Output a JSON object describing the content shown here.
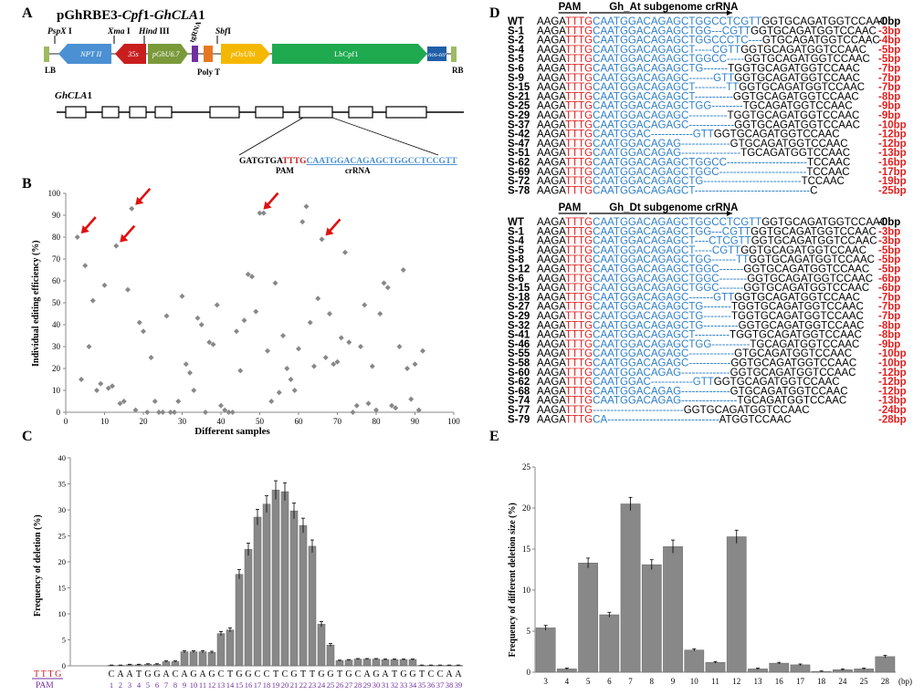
{
  "panel_labels": [
    "A",
    "B",
    "C",
    "D",
    "E"
  ],
  "panelA": {
    "title_prefix": "pGhRBE3-",
    "title_mid1": "Cpf",
    "title_mid2": "1-",
    "title_gene": "GhCLA",
    "title_suffix": "1",
    "sites": [
      {
        "italic": "PspX",
        "roman": " I"
      },
      {
        "italic": "Xma",
        "roman": " I"
      },
      {
        "italic": "Hind",
        "roman": " III"
      },
      {
        "italic": "",
        "roman": "tgRNA"
      },
      {
        "italic": "Sbf",
        "roman": "I"
      }
    ],
    "segments": [
      "LB",
      "NPT II",
      "35s",
      "pGhU6.7",
      "Poly T",
      "pOsUbi",
      "LbCpf1",
      "nos-ter",
      "RB"
    ],
    "gene_label_italic": "GhCLA",
    "gene_label_roman": "1",
    "seq_prefix": "GATGTGA",
    "seq_pam": "TTTG",
    "seq_cr": "CAATGGACAGAGCTGGCCTCCGTT",
    "seq_pam_label": "PAM",
    "seq_cr_label": "crRNA",
    "colors": {
      "blue": "#4a90d2",
      "red": "#c81e1e",
      "olive": "#7a9a3a",
      "purple": "#7030a0",
      "orange": "#e87722",
      "yellow": "#f5b800",
      "green": "#1faa50",
      "navy": "#1f5fa8",
      "lightgreen": "#9dbb61"
    }
  },
  "panelB": {
    "ylabel": "Individual  editing efficiency (%)",
    "xlabel": "Different samples",
    "chart_data": {
      "type": "scatter",
      "xlim": [
        0,
        100
      ],
      "ylim": [
        0,
        100
      ],
      "xticks": [
        0,
        10,
        20,
        30,
        40,
        50,
        60,
        70,
        80,
        90,
        100
      ],
      "yticks": [
        0,
        10,
        20,
        30,
        40,
        50,
        60,
        70,
        80,
        90,
        100
      ],
      "points": [
        [
          3,
          80
        ],
        [
          4,
          15
        ],
        [
          5,
          67
        ],
        [
          6,
          30
        ],
        [
          7,
          51
        ],
        [
          8,
          10
        ],
        [
          9,
          13
        ],
        [
          10,
          58
        ],
        [
          11,
          11
        ],
        [
          12,
          12
        ],
        [
          13,
          76
        ],
        [
          14,
          4
        ],
        [
          15,
          5
        ],
        [
          16,
          56
        ],
        [
          17,
          93
        ],
        [
          18,
          1
        ],
        [
          19,
          41
        ],
        [
          20,
          37
        ],
        [
          21,
          0
        ],
        [
          22,
          25
        ],
        [
          23,
          5
        ],
        [
          24,
          0
        ],
        [
          25,
          0
        ],
        [
          26,
          44
        ],
        [
          27,
          0
        ],
        [
          28,
          0
        ],
        [
          29,
          5
        ],
        [
          30,
          53
        ],
        [
          31,
          22
        ],
        [
          32,
          18
        ],
        [
          33,
          10
        ],
        [
          34,
          43
        ],
        [
          35,
          40
        ],
        [
          36,
          0
        ],
        [
          37,
          32
        ],
        [
          38,
          31
        ],
        [
          39,
          49
        ],
        [
          40,
          3
        ],
        [
          41,
          1
        ],
        [
          42,
          0
        ],
        [
          43,
          0
        ],
        [
          44,
          37
        ],
        [
          45,
          19
        ],
        [
          46,
          42
        ],
        [
          47,
          63
        ],
        [
          48,
          62
        ],
        [
          49,
          46
        ],
        [
          50,
          91
        ],
        [
          51,
          91
        ],
        [
          52,
          28
        ],
        [
          53,
          5
        ],
        [
          54,
          59
        ],
        [
          55,
          9
        ],
        [
          56,
          35
        ],
        [
          57,
          20
        ],
        [
          58,
          15
        ],
        [
          59,
          10
        ],
        [
          60,
          29
        ],
        [
          61,
          87
        ],
        [
          62,
          94
        ],
        [
          63,
          41
        ],
        [
          64,
          21
        ],
        [
          65,
          52
        ],
        [
          66,
          79
        ],
        [
          67,
          25
        ],
        [
          68,
          45
        ],
        [
          69,
          22
        ],
        [
          70,
          23
        ],
        [
          71,
          34
        ],
        [
          72,
          73
        ],
        [
          73,
          32
        ],
        [
          74,
          0
        ],
        [
          75,
          3
        ],
        [
          76,
          30
        ],
        [
          77,
          49
        ],
        [
          78,
          4
        ],
        [
          79,
          21
        ],
        [
          80,
          1
        ],
        [
          81,
          45
        ],
        [
          82,
          59
        ],
        [
          83,
          57
        ],
        [
          84,
          3
        ],
        [
          85,
          2
        ],
        [
          86,
          30
        ],
        [
          87,
          65
        ],
        [
          88,
          20
        ],
        [
          89,
          6
        ],
        [
          90,
          22
        ],
        [
          91,
          1
        ],
        [
          92,
          28
        ]
      ],
      "arrows_at": [
        [
          3,
          80
        ],
        [
          17,
          93
        ],
        [
          13,
          76
        ],
        [
          50,
          91
        ],
        [
          66,
          79
        ]
      ]
    }
  },
  "panelC": {
    "ylabel": "Frequency of deletion (%)",
    "chart_data": {
      "type": "bar",
      "ylim": [
        0,
        40
      ],
      "yticks": [
        0,
        5,
        10,
        15,
        20,
        25,
        30,
        35,
        40
      ],
      "letters": [
        "C",
        "A",
        "A",
        "T",
        "G",
        "G",
        "A",
        "C",
        "A",
        "G",
        "A",
        "G",
        "C",
        "T",
        "G",
        "G",
        "C",
        "C",
        "T",
        "C",
        "G",
        "T",
        "T",
        "G",
        "G",
        "T",
        "G",
        "C",
        "A",
        "G",
        "A",
        "T",
        "G",
        "G",
        "T",
        "C",
        "C",
        "A",
        "A"
      ],
      "numbers": [
        "1",
        "2",
        "3",
        "4",
        "5",
        "6",
        "7",
        "8",
        "9",
        "10",
        "11",
        "12",
        "13",
        "14",
        "15",
        "16",
        "17",
        "18",
        "19",
        "20",
        "21",
        "22",
        "23",
        "24",
        "25",
        "26",
        "27",
        "28",
        "29",
        "30",
        "31",
        "32",
        "33",
        "34",
        "35",
        "36",
        "37",
        "38",
        "39"
      ],
      "values": [
        0.1,
        0.1,
        0.2,
        0.2,
        0.3,
        0.3,
        0.8,
        0.8,
        2.7,
        2.7,
        2.7,
        2.6,
        6.2,
        6.9,
        17.6,
        22.4,
        28.6,
        31.1,
        33.8,
        33.5,
        29.8,
        27.0,
        23.0,
        8.0,
        4.0,
        1.0,
        1.1,
        1.3,
        1.3,
        1.3,
        1.2,
        1.2,
        1.2,
        1.2,
        0.1,
        0.1,
        0.1,
        0.1,
        0.1
      ],
      "errors": [
        0.05,
        0.05,
        0.1,
        0.1,
        0.1,
        0.1,
        0.15,
        0.15,
        0.2,
        0.2,
        0.2,
        0.2,
        0.4,
        0.4,
        0.9,
        1.2,
        1.5,
        1.6,
        1.8,
        1.7,
        1.5,
        1.4,
        1.2,
        0.5,
        0.3,
        0.1,
        0.1,
        0.1,
        0.1,
        0.1,
        0.1,
        0.1,
        0.1,
        0.1,
        0.05,
        0.05,
        0.05,
        0.05,
        0.05
      ],
      "pam_letters": "TTTG",
      "pam_label": "PAM"
    }
  },
  "panelD": {
    "at_header": "Gh_At subgenome crRNA",
    "dt_header": "Gh_Dt subgenome crRNA",
    "pam_label": "PAM",
    "at_rows": [
      {
        "id": "WT",
        "pre": "AAGA",
        "pam": "TTTG",
        "cr": "CAATGGACAGAGCTGGCCTCGTT",
        "post": "GGTGCAGATGGTCCAAC",
        "del": "-0bp"
      },
      {
        "id": "S-1",
        "pre": "AAGA",
        "pam": "TTTG",
        "cr": "CAATGGACAGAGCTGG---CGTT",
        "post": "GGTGCAGATGGTCCAAC",
        "del": "-3bp"
      },
      {
        "id": "S-2",
        "pre": "AAGA",
        "pam": "TTTG",
        "cr": "CAATGGACAGAGCTGGCCCTC----",
        "post": "GTGCAGATGGTCCAAC",
        "del": "-4bp"
      },
      {
        "id": "S-4",
        "pre": "AAGA",
        "pam": "TTTG",
        "cr": "CAATGGACAGAGCT-----CGTT",
        "post": "GGTGCAGATGGTCCAAC",
        "del": "-5bp"
      },
      {
        "id": "S-5",
        "pre": "AAGA",
        "pam": "TTTG",
        "cr": "CAATGGACAGAGCTGGCC-----",
        "post": "GGTGCAGATGGTCCAAC",
        "del": "-5bp"
      },
      {
        "id": "S-6",
        "pre": "AAGA",
        "pam": "TTTG",
        "cr": "CAATGGACAGAGCTG-------",
        "post": "TGGTGCAGATGGTCCAAC",
        "del": "-7bp"
      },
      {
        "id": "S-9",
        "pre": "AAGA",
        "pam": "TTTG",
        "cr": "CAATGGACAGAGC-------GTT",
        "post": "GGTGCAGATGGTCCAAC",
        "del": "-7bp"
      },
      {
        "id": "S-15",
        "pre": "AAGA",
        "pam": "TTTG",
        "cr": "CAATGGACAGAGCT---------TT",
        "post": "GGTGCAGATGGTCCAAC",
        "del": "-7bp"
      },
      {
        "id": "S-21",
        "pre": "AAGA",
        "pam": "TTTG",
        "cr": "CAATGGACAGAGCT-----------",
        "post": "GGTGCAGATGGTCCAAC",
        "del": "-8bp"
      },
      {
        "id": "S-25",
        "pre": "AAGA",
        "pam": "TTTG",
        "cr": "CAATGGACAGAGCTGG---------",
        "post": "TGCAGATGGTCCAAC",
        "del": "-9bp"
      },
      {
        "id": "S-29",
        "pre": "AAGA",
        "pam": "TTTG",
        "cr": "CAATGGACAGAGC-----------",
        "post": "TGGTGCAGATGGTCCAAC",
        "del": "-9bp"
      },
      {
        "id": "S-37",
        "pre": "AAGA",
        "pam": "TTTG",
        "cr": "CAATGGACAGAGC-------------",
        "post": "GGTGCAGATGGTCCAAC",
        "del": "-10bp"
      },
      {
        "id": "S-42",
        "pre": "AAGA",
        "pam": "TTTG",
        "cr": "CAATGGAC------------GTT",
        "post": "GGTGCAGATGGTCCAAC",
        "del": "-12bp"
      },
      {
        "id": "S-47",
        "pre": "AAGA",
        "pam": "TTTG",
        "cr": "CAATGGACAGAG--------------",
        "post": "GTGCAGATGGTCCAAC",
        "del": "-12bp"
      },
      {
        "id": "S-51",
        "pre": "AAGA",
        "pam": "TTTG",
        "cr": "CAATGGACAGAG-----------------",
        "post": "TGCAGATGGTCCAAC",
        "del": "-13bp"
      },
      {
        "id": "S-62",
        "pre": "AAGA",
        "pam": "TTTG",
        "cr": "CAATGGACAGAGCTGGCC-----------------------",
        "post": "TCCAAC",
        "del": "-16bp"
      },
      {
        "id": "S-69",
        "pre": "AAGA",
        "pam": "TTTG",
        "cr": "CAATGGACAGAGCTGGC-------------------------",
        "post": "TCCAAC",
        "del": "-17bp"
      },
      {
        "id": "S-72",
        "pre": "AAGA",
        "pam": "TTTG",
        "cr": "CAATGGACAGAGCTG----------------------------",
        "post": "TCCAAC",
        "del": "-19bp"
      },
      {
        "id": "S-78",
        "pre": "AAGA",
        "pam": "TTTG",
        "cr": "CAATGGACAGAGCT---------------------------------",
        "post": "C",
        "del": "-25bp"
      }
    ],
    "dt_rows": [
      {
        "id": "WT",
        "pre": "AAGA",
        "pam": "TTTG",
        "cr": "CAATGGACAGAGCTGGCCTCGTT",
        "post": "GGTGCAGATGGTCCAAC",
        "del": "-0bp"
      },
      {
        "id": "S-1",
        "pre": "AAGA",
        "pam": "TTTG",
        "cr": "CAATGGACAGAGCTGG---CGTT",
        "post": "GGTGCAGATGGTCCAAC",
        "del": "-3bp"
      },
      {
        "id": "S-4",
        "pre": "AAGA",
        "pam": "TTTG",
        "cr": "CAATGGACAGAGCT----CTCGTT",
        "post": "GGTGCAGATGGTCCAAC",
        "del": "-3bp"
      },
      {
        "id": "S-5",
        "pre": "AAGA",
        "pam": "TTTG",
        "cr": "CAATGGACAGAGCT-----CGTT",
        "post": "GGTGCAGATGGTCCAAC",
        "del": "-5bp"
      },
      {
        "id": "S-8",
        "pre": "AAGA",
        "pam": "TTTG",
        "cr": "CAATGGACAGAGCTGG-------TT",
        "post": "GGTGCAGATGGTCCAAC",
        "del": "-5bp"
      },
      {
        "id": "S-12",
        "pre": "AAGA",
        "pam": "TTTG",
        "cr": "CAATGGACAGAGCTGGC-------",
        "post": "GGTGCAGATGGTCCAAC",
        "del": "-5bp"
      },
      {
        "id": "S-6",
        "pre": "AAGA",
        "pam": "TTTG",
        "cr": "CAATGGACAGAGCTGGC--------",
        "post": "GGTGCAGATGGTCCAAC",
        "del": "-6bp"
      },
      {
        "id": "S-15",
        "pre": "AAGA",
        "pam": "TTTG",
        "cr": "CAATGGACAGAGCTGGC-------",
        "post": "GGTGCAGATGGTCCAAC",
        "del": "-6bp"
      },
      {
        "id": "S-18",
        "pre": "AAGA",
        "pam": "TTTG",
        "cr": "CAATGGACAGAGC-------GTT",
        "post": "GGTGCAGATGGTCCAAC",
        "del": "-7bp"
      },
      {
        "id": "S-27",
        "pre": "AAGA",
        "pam": "TTTG",
        "cr": "CAATGGACAGAGCTG--------",
        "post": "TGGTGCAGATGGTCCAAC",
        "del": "-7bp"
      },
      {
        "id": "S-29",
        "pre": "AAGA",
        "pam": "TTTG",
        "cr": "CAATGGACAGAGCTG--------",
        "post": "TGGTGCAGATGGTCCAAC",
        "del": "-7bp"
      },
      {
        "id": "S-32",
        "pre": "AAGA",
        "pam": "TTTG",
        "cr": "CAATGGACAGAGCTG----------",
        "post": "GGTGCAGATGGTCCAAC",
        "del": "-8bp"
      },
      {
        "id": "S-41",
        "pre": "AAGA",
        "pam": "TTTG",
        "cr": "CAATGGACAGAGCT----------",
        "post": "TGGTGCAGATGGTCCAAC",
        "del": "-8bp"
      },
      {
        "id": "S-46",
        "pre": "AAGA",
        "pam": "TTTG",
        "cr": "CAATGGACAGAGCTGG-----------",
        "post": "TGCAGATGGTCCAAC",
        "del": "-9bp"
      },
      {
        "id": "S-55",
        "pre": "AAGA",
        "pam": "TTTG",
        "cr": "CAATGGACAGAGC-------------",
        "post": "GTGCAGATGGTCCAAC",
        "del": "-10bp"
      },
      {
        "id": "S-58",
        "pre": "AAGA",
        "pam": "TTTG",
        "cr": "CAATGGACAGAGC------------",
        "post": "GGTGCAGATGGTCCAAC",
        "del": "-10bp"
      },
      {
        "id": "S-60",
        "pre": "AAGA",
        "pam": "TTTG",
        "cr": "CAATGGACAGAG--------------",
        "post": "GGTGCAGATGGTCCAAC",
        "del": "-12bp"
      },
      {
        "id": "S-62",
        "pre": "AAGA",
        "pam": "TTTG",
        "cr": "CAATGGAC------------GTT",
        "post": "GGTGCAGATGGTCCAAC",
        "del": "-12bp"
      },
      {
        "id": "S-68",
        "pre": "AAGA",
        "pam": "TTTG",
        "cr": "CAATGGACAGAG--------------",
        "post": "GTGCAGATGGTCCAAC",
        "del": "-12bp"
      },
      {
        "id": "S-74",
        "pre": "AAGA",
        "pam": "TTTG",
        "cr": "CAATGGACAGAG----------------",
        "post": "TGCAGATGGTCCAAC",
        "del": "-13bp"
      },
      {
        "id": "S-77",
        "pre": "AAGA",
        "pam": "TTTG",
        "cr": "--------------------------",
        "post": "GGTGCAGATGGTCCAAC",
        "del": "-24bp"
      },
      {
        "id": "S-79",
        "pre": "AAGA",
        "pam": "TTTG",
        "cr": "CA--------------------------------",
        "post": "ATGGTCCAAC",
        "del": "-28bp"
      }
    ]
  },
  "panelE": {
    "ylabel": "Frequency of different deletion size (%)",
    "unit": "(bp)",
    "chart_data": {
      "type": "bar",
      "ylim": [
        0,
        25
      ],
      "yticks": [
        0,
        5,
        10,
        15,
        20,
        25
      ],
      "categories": [
        "3",
        "4",
        "5",
        "6",
        "7",
        "8",
        "9",
        "10",
        "11",
        "12",
        "13",
        "16",
        "17",
        "18",
        "24",
        "25",
        "28"
      ],
      "values": [
        5.4,
        0.4,
        13.3,
        7.0,
        20.5,
        13.1,
        15.3,
        2.7,
        1.2,
        16.5,
        0.4,
        1.1,
        0.9,
        0.1,
        0.3,
        0.4,
        1.9
      ],
      "errors": [
        0.3,
        0.1,
        0.6,
        0.3,
        0.8,
        0.6,
        0.8,
        0.15,
        0.1,
        0.8,
        0.1,
        0.1,
        0.1,
        0.05,
        0.1,
        0.1,
        0.15
      ]
    }
  }
}
